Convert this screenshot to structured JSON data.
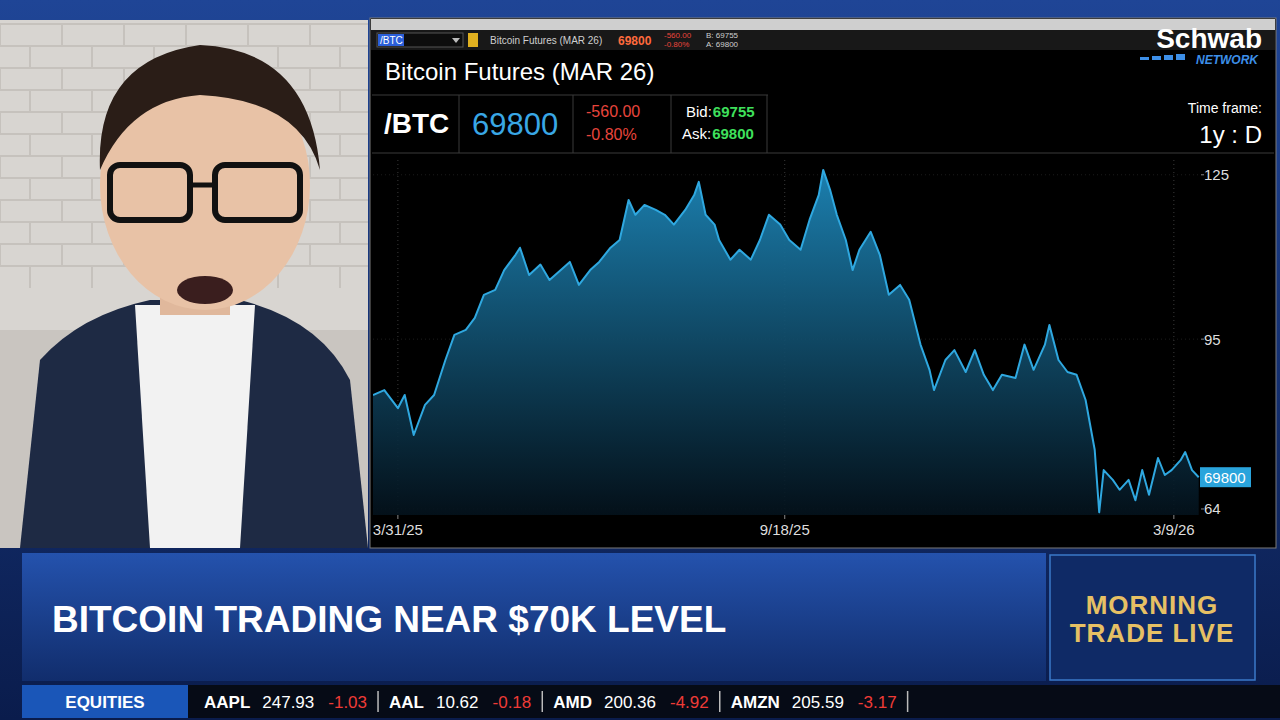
{
  "broadcast": {
    "headline": "BITCOIN TRADING NEAR $70K LEVEL",
    "show_title": [
      "MORNING",
      "TRADE LIVE"
    ],
    "network": {
      "name": "Schwab",
      "sub": "NETWORK"
    },
    "ticker": {
      "category": "EQUITIES",
      "items": [
        {
          "symbol": "AAPL",
          "price": "247.93",
          "change": "-1.03"
        },
        {
          "symbol": "AAL",
          "price": "10.62",
          "change": "-0.18"
        },
        {
          "symbol": "AMD",
          "price": "200.36",
          "change": "-4.92"
        },
        {
          "symbol": "AMZN",
          "price": "205.59",
          "change": "-3.17"
        }
      ]
    }
  },
  "platform": {
    "symbol_input": "/BTC",
    "toolbar_price": "69800",
    "toolbar_change": "-560.00",
    "toolbar_pct": "-0.80%",
    "toolbar_bid": "B: 69755",
    "toolbar_ask": "A: 69800",
    "symbol": "/BTC",
    "price": "69800",
    "change": "-560.00",
    "change_pct": "-0.80%",
    "bid_label": "Bid:",
    "bid": "69755",
    "ask_label": "Ask:",
    "ask": "69800",
    "time_frame_label": "Time frame:",
    "time_frame": "1y : D"
  },
  "chart_data": {
    "type": "area",
    "title": "Bitcoin Futures (MAR 26)",
    "color": "#2fa8e0",
    "x": [
      "2025-03-20",
      "2025-03-25",
      "2025-03-31",
      "2025-04-03",
      "2025-04-07",
      "2025-04-12",
      "2025-04-16",
      "2025-04-21",
      "2025-04-25",
      "2025-04-30",
      "2025-05-04",
      "2025-05-08",
      "2025-05-13",
      "2025-05-17",
      "2025-05-22",
      "2025-05-24",
      "2025-05-28",
      "2025-06-02",
      "2025-06-06",
      "2025-06-11",
      "2025-06-15",
      "2025-06-19",
      "2025-06-24",
      "2025-06-28",
      "2025-07-03",
      "2025-07-07",
      "2025-07-11",
      "2025-07-14",
      "2025-07-18",
      "2025-07-23",
      "2025-07-27",
      "2025-07-31",
      "2025-08-05",
      "2025-08-09",
      "2025-08-11",
      "2025-08-14",
      "2025-08-18",
      "2025-08-20",
      "2025-08-25",
      "2025-08-29",
      "2025-09-03",
      "2025-09-07",
      "2025-09-11",
      "2025-09-16",
      "2025-09-20",
      "2025-09-25",
      "2025-09-29",
      "2025-10-03",
      "2025-10-05",
      "2025-10-08",
      "2025-10-11",
      "2025-10-15",
      "2025-10-18",
      "2025-10-21",
      "2025-10-26",
      "2025-10-30",
      "2025-11-03",
      "2025-11-08",
      "2025-11-12",
      "2025-11-17",
      "2025-11-21",
      "2025-11-23",
      "2025-11-28",
      "2025-12-02",
      "2025-12-07",
      "2025-12-11",
      "2025-12-15",
      "2025-12-19",
      "2025-12-23",
      "2025-12-29",
      "2026-01-02",
      "2026-01-06",
      "2026-01-11",
      "2026-01-13",
      "2026-01-17",
      "2026-01-21",
      "2026-01-25",
      "2026-01-29",
      "2026-02-02",
      "2026-02-04",
      "2026-02-06",
      "2026-02-10",
      "2026-02-13",
      "2026-02-17",
      "2026-02-20",
      "2026-02-23",
      "2026-02-26",
      "2026-03-02",
      "2026-03-05",
      "2026-03-08",
      "2026-03-12",
      "2026-03-14",
      "2026-03-17",
      "2026-03-20"
    ],
    "values": [
      84.8,
      85.7,
      82.4,
      84.8,
      77.5,
      83.0,
      84.8,
      91.2,
      95.8,
      96.7,
      98.9,
      103.1,
      104.0,
      107.6,
      110.4,
      111.7,
      106.7,
      108.6,
      105.8,
      107.6,
      109.1,
      104.9,
      107.6,
      109.1,
      111.7,
      113.1,
      120.4,
      117.7,
      119.5,
      118.6,
      117.7,
      115.9,
      118.6,
      121.3,
      123.7,
      117.7,
      115.9,
      113.1,
      109.5,
      111.3,
      109.5,
      113.1,
      117.7,
      115.9,
      113.1,
      111.3,
      116.8,
      121.3,
      125.9,
      122.3,
      117.7,
      113.1,
      107.6,
      111.3,
      114.6,
      110.4,
      103.1,
      104.9,
      102.2,
      94.0,
      89.4,
      85.7,
      91.2,
      93.0,
      89.0,
      93.0,
      88.5,
      85.7,
      88.5,
      87.9,
      94.0,
      89.4,
      94.0,
      97.6,
      91.2,
      89.0,
      88.5,
      83.9,
      74.8,
      63.4,
      71.1,
      69.3,
      67.5,
      69.3,
      65.6,
      71.1,
      66.6,
      73.3,
      70.2,
      71.1,
      72.9,
      74.4,
      71.1,
      69.8
    ],
    "xlim": [
      "2025-03-20",
      "2026-03-21"
    ],
    "xticks": [
      {
        "value": "2025-03-31",
        "label": "3/31/25"
      },
      {
        "value": "2025-09-18",
        "label": "9/18/25"
      },
      {
        "value": "2026-03-09",
        "label": "3/9/26"
      }
    ],
    "ylim": [
      62.9,
      127.7
    ],
    "yticks": [
      64,
      {
        "value": 69.8,
        "label": "69800"
      },
      95,
      125
    ],
    "grid": true
  }
}
